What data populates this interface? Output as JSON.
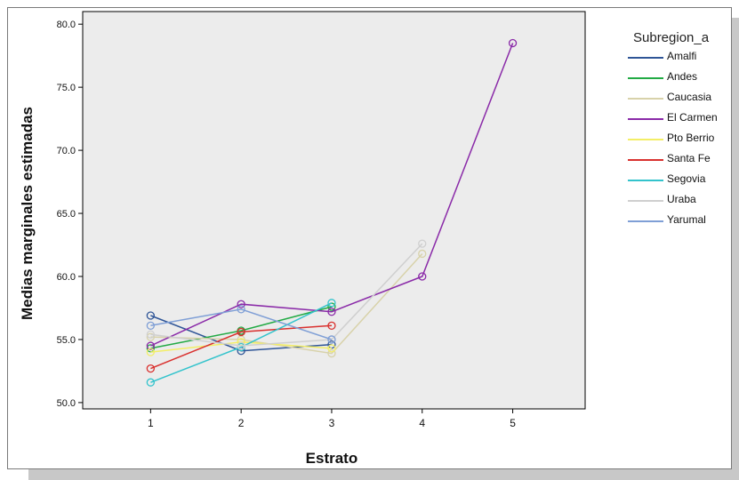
{
  "chart_data": {
    "type": "line",
    "title": "",
    "xlabel": "Estrato",
    "ylabel": "Medias marginales estimadas",
    "x_ticks": [
      1,
      2,
      3,
      4,
      5
    ],
    "x_tick_labels": [
      "1",
      "2",
      "3",
      "4",
      "5"
    ],
    "xlim": [
      0.25,
      5.8
    ],
    "ylim": [
      49.5,
      81.0
    ],
    "y_ticks": [
      50.0,
      55.0,
      60.0,
      65.0,
      70.0,
      75.0,
      80.0
    ],
    "y_tick_labels": [
      "50.0",
      "55.0",
      "60.0",
      "65.0",
      "70.0",
      "75.0",
      "80.0"
    ],
    "grid": false,
    "plot_background": "#ececec",
    "legend_title": "Subregion_a",
    "legend_position": "right",
    "series": [
      {
        "name": "Amalfi",
        "color": "#2f5597",
        "points": [
          [
            1,
            56.9
          ],
          [
            2,
            54.1
          ],
          [
            3,
            54.6
          ]
        ]
      },
      {
        "name": "Andes",
        "color": "#22aa44",
        "points": [
          [
            1,
            54.3
          ],
          [
            2,
            55.7
          ],
          [
            3,
            57.6
          ]
        ]
      },
      {
        "name": "Caucasia",
        "color": "#d8d2aa",
        "points": [
          [
            1,
            55.2
          ],
          [
            2,
            55.0
          ],
          [
            3,
            53.9
          ],
          [
            4,
            61.8
          ]
        ]
      },
      {
        "name": "El Carmen",
        "color": "#8a2aa8",
        "points": [
          [
            1,
            54.5
          ],
          [
            2,
            57.8
          ],
          [
            3,
            57.2
          ],
          [
            4,
            60.0
          ],
          [
            5,
            78.5
          ]
        ]
      },
      {
        "name": "Pto Berrio",
        "color": "#f3ee66",
        "points": [
          [
            1,
            54.0
          ],
          [
            2,
            54.8
          ],
          [
            3,
            54.3
          ]
        ]
      },
      {
        "name": "Santa Fe",
        "color": "#d9302e",
        "points": [
          [
            1,
            52.7
          ],
          [
            2,
            55.6
          ],
          [
            3,
            56.1
          ]
        ]
      },
      {
        "name": "Segovia",
        "color": "#33c3cc",
        "points": [
          [
            1,
            51.6
          ],
          [
            2,
            54.4
          ],
          [
            3,
            57.9
          ]
        ]
      },
      {
        "name": "Uraba",
        "color": "#cfcfcf",
        "points": [
          [
            1,
            55.4
          ],
          [
            2,
            54.5
          ],
          [
            3,
            55.0
          ],
          [
            4,
            62.6
          ]
        ]
      },
      {
        "name": "Yarumal",
        "color": "#7f9fd6",
        "points": [
          [
            1,
            56.1
          ],
          [
            2,
            57.4
          ],
          [
            3,
            55.0
          ]
        ]
      }
    ]
  }
}
